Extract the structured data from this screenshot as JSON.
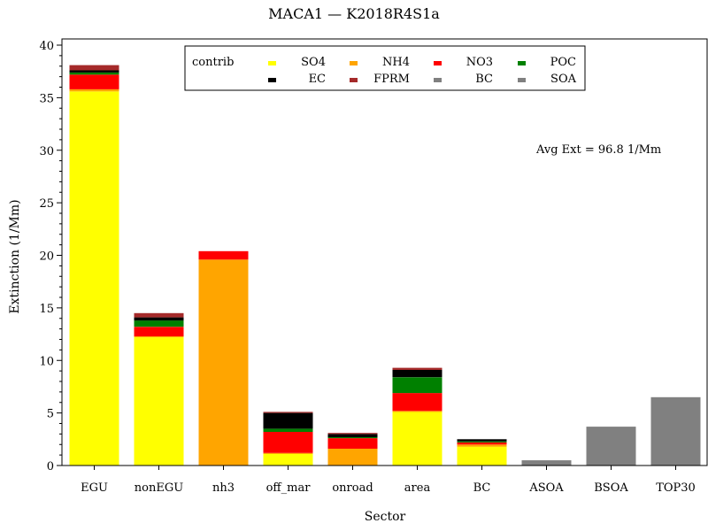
{
  "chart_data": {
    "type": "bar",
    "stacked": true,
    "title": "MACA1 — K2018R4S1a",
    "xlabel": "Sector",
    "ylabel": "Extinction (1/Mm)",
    "ylim": [
      0,
      40
    ],
    "yticks": [
      0,
      5,
      10,
      15,
      20,
      25,
      30,
      35,
      40
    ],
    "grid": false,
    "legend_placement": "top-center",
    "legend_title": "contrib",
    "annotation": "Avg Ext =  96.8 1/Mm",
    "categories": [
      "EGU",
      "nonEGU",
      "nh3",
      "off_mar",
      "onroad",
      "area",
      "BC",
      "ASOA",
      "BSOA",
      "TOP30"
    ],
    "series": [
      {
        "name": "SO4",
        "color": "#ffff00",
        "values": [
          35.6,
          12.2,
          0,
          1.1,
          0,
          5.1,
          1.8,
          0,
          0,
          0
        ]
      },
      {
        "name": "NH4",
        "color": "#ffa500",
        "values": [
          0.2,
          0.1,
          19.6,
          0.1,
          1.6,
          0.1,
          0.2,
          0,
          0,
          0
        ]
      },
      {
        "name": "NO3",
        "color": "#ff0000",
        "values": [
          1.4,
          0.9,
          0.8,
          2.0,
          1.0,
          1.7,
          0.2,
          0,
          0,
          0
        ]
      },
      {
        "name": "POC",
        "color": "#008000",
        "values": [
          0.2,
          0.6,
          0,
          0.3,
          0.1,
          1.5,
          0.1,
          0,
          0,
          0
        ]
      },
      {
        "name": "EC",
        "color": "#000000",
        "values": [
          0.2,
          0.3,
          0,
          1.5,
          0.3,
          0.7,
          0.2,
          0,
          0,
          0
        ]
      },
      {
        "name": "FPRM",
        "color": "#a52a2a",
        "values": [
          0.5,
          0.4,
          0,
          0.1,
          0.1,
          0.2,
          0,
          0,
          0,
          0
        ]
      },
      {
        "name": "BC",
        "color": "#808080",
        "values": [
          0,
          0,
          0,
          0,
          0,
          0,
          0,
          0,
          0,
          0
        ]
      },
      {
        "name": "SOA",
        "color": "#808080",
        "values": [
          0,
          0,
          0,
          0,
          0,
          0,
          0,
          0.5,
          3.7,
          6.5
        ]
      }
    ]
  }
}
